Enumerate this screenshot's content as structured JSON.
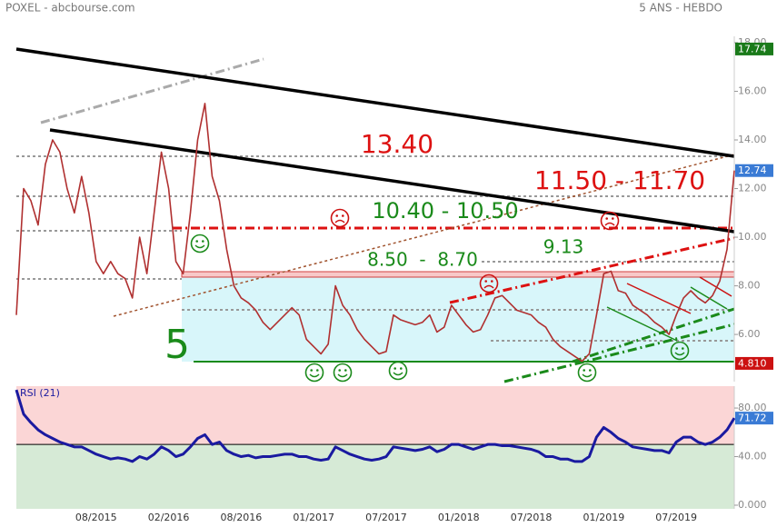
{
  "chart_data": [
    {
      "type": "line",
      "title": "POXEL - abcbourse.com",
      "subtitle": "5 ANS - HEBDO",
      "categories": [
        null,
        null,
        null,
        null,
        null,
        null,
        null,
        null,
        null,
        null,
        null,
        "08/2015",
        null,
        null,
        null,
        null,
        null,
        null,
        null,
        null,
        null,
        "02/2016",
        null,
        null,
        null,
        null,
        null,
        null,
        null,
        null,
        null,
        "08/2016",
        null,
        null,
        null,
        null,
        null,
        null,
        null,
        null,
        null,
        "01/2017",
        null,
        null,
        null,
        null,
        null,
        null,
        null,
        null,
        null,
        "07/2017",
        null,
        null,
        null,
        null,
        null,
        null,
        null,
        null,
        null,
        "01/2018",
        null,
        null,
        null,
        null,
        null,
        null,
        null,
        null,
        null,
        "07/2018",
        null,
        null,
        null,
        null,
        null,
        null,
        null,
        null,
        null,
        "01/2019",
        null,
        null,
        null,
        null,
        null,
        null,
        null,
        null,
        null,
        "07/2019",
        null,
        null,
        null,
        null,
        null,
        null,
        null,
        null
      ],
      "series": [
        {
          "color": "#b03030",
          "values": [
            6.8,
            12,
            11.5,
            10.5,
            13,
            14,
            13.5,
            12,
            11,
            12.5,
            11,
            9,
            8.5,
            9,
            8.5,
            8.3,
            7.5,
            10,
            8.5,
            11,
            13.5,
            12,
            9,
            8.5,
            11,
            14,
            15.5,
            12.5,
            11.5,
            9.5,
            8,
            7.5,
            7.3,
            7,
            6.5,
            6.2,
            6.5,
            6.8,
            7.1,
            6.8,
            5.8,
            5.5,
            5.2,
            5.6,
            8,
            7.2,
            6.8,
            6.2,
            5.8,
            5.5,
            5.2,
            5.3,
            6.8,
            6.6,
            6.5,
            6.4,
            6.5,
            6.8,
            6.1,
            6.3,
            7.2,
            6.8,
            6.4,
            6.1,
            6.2,
            6.8,
            7.5,
            7.6,
            7.3,
            7,
            6.9,
            6.8,
            6.5,
            6.3,
            5.8,
            5.5,
            5.3,
            5.1,
            4.9,
            5.2,
            6.8,
            8.5,
            8.6,
            7.8,
            7.7,
            7.2,
            7,
            6.8,
            6.5,
            6.3,
            6,
            6.8,
            7.5,
            7.8,
            7.5,
            7.3,
            7.6,
            8.2,
            9.5,
            12.74
          ]
        }
      ],
      "ylim": [
        4.06,
        18.26
      ],
      "yticks": [
        {
          "value": 6,
          "label": "6.00"
        },
        {
          "value": 8,
          "label": "8.00"
        },
        {
          "value": 10,
          "label": "10.00"
        },
        {
          "value": 12,
          "label": "12.00"
        },
        {
          "value": 14,
          "label": "14.00"
        },
        {
          "value": 16,
          "label": "16.00"
        },
        {
          "value": 18,
          "label": "18.00"
        }
      ],
      "grid": false,
      "price_labels": [
        {
          "value": 17.74,
          "label": "17.74",
          "color": "#1a7a1a"
        },
        {
          "value": 12.74,
          "label": "12.74",
          "color": "#3a7bd5"
        },
        {
          "value": 4.81,
          "label": "4.810",
          "color": "#cc1111"
        }
      ],
      "annotations": [
        {
          "text": "13.40",
          "color": "#dd1111"
        },
        {
          "text": "11.50 - 11.70",
          "color": "#dd1111"
        },
        {
          "text": "10.40 - 10.50",
          "color": "#1a8a1a"
        },
        {
          "text": "8.50  -  8.70",
          "color": "#1a8a1a"
        },
        {
          "text": "9.13",
          "color": "#1a8a1a"
        },
        {
          "text": "5",
          "color": "#1a8a1a"
        }
      ]
    },
    {
      "type": "line",
      "title": "RSI (21)",
      "series": [
        {
          "name": "RSI (21)",
          "color": "#1a1aa0",
          "values": [
            95,
            75,
            68,
            62,
            58,
            55,
            52,
            50,
            48,
            48,
            45,
            42,
            40,
            38,
            39,
            38,
            36,
            40,
            38,
            42,
            48,
            45,
            40,
            42,
            48,
            55,
            58,
            50,
            52,
            45,
            42,
            40,
            41,
            39,
            40,
            40,
            41,
            42,
            42,
            40,
            40,
            38,
            37,
            38,
            48,
            45,
            42,
            40,
            38,
            37,
            38,
            40,
            48,
            47,
            46,
            45,
            46,
            48,
            44,
            46,
            50,
            50,
            48,
            46,
            48,
            50,
            50,
            49,
            49,
            48,
            47,
            46,
            44,
            40,
            40,
            38,
            38,
            36,
            36,
            40,
            56,
            64,
            60,
            55,
            52,
            48,
            47,
            46,
            45,
            45,
            43,
            52,
            56,
            56,
            52,
            50,
            52,
            56,
            62,
            71.72
          ]
        }
      ],
      "ylim": [
        -3,
        98
      ],
      "yticks": [
        {
          "value": 0,
          "label": "0.000"
        },
        {
          "value": 40,
          "label": "40.00"
        },
        {
          "value": 80,
          "label": "80.00"
        }
      ],
      "zone_split": 50,
      "price_labels": [
        {
          "value": 71.72,
          "label": "71.72",
          "color": "#3a7bd5"
        }
      ]
    }
  ]
}
